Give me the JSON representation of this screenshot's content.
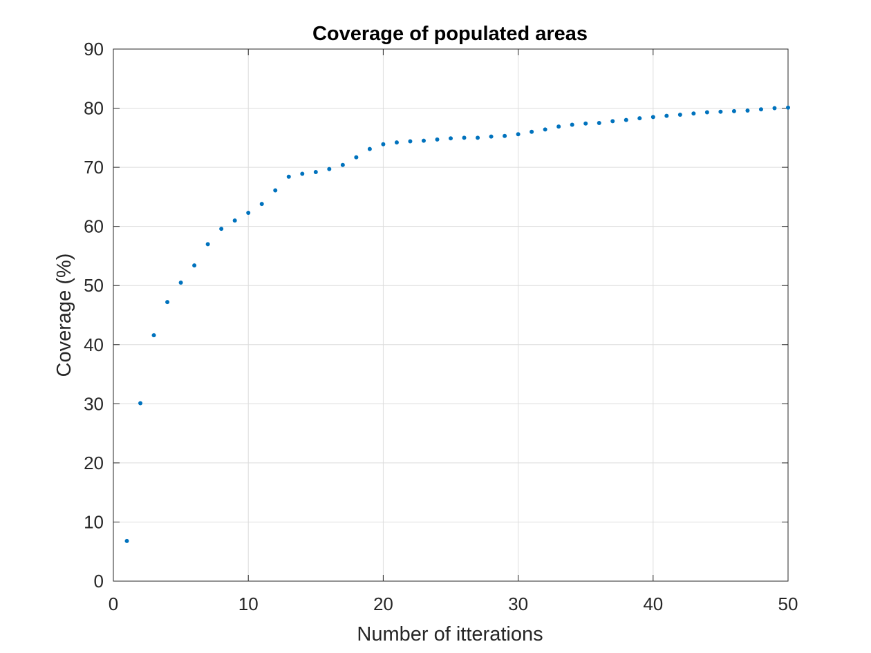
{
  "chart_data": {
    "type": "scatter",
    "title": "Coverage of populated areas",
    "xlabel": "Number of itterations",
    "ylabel": "Coverage (%)",
    "xlim": [
      0,
      50
    ],
    "ylim": [
      0,
      90
    ],
    "xticks": [
      0,
      10,
      20,
      30,
      40,
      50
    ],
    "yticks": [
      0,
      10,
      20,
      30,
      40,
      50,
      60,
      70,
      80,
      90
    ],
    "grid": true,
    "marker_color": "#0072BD",
    "x": [
      1,
      2,
      3,
      4,
      5,
      6,
      7,
      8,
      9,
      10,
      11,
      12,
      13,
      14,
      15,
      16,
      17,
      18,
      19,
      20,
      21,
      22,
      23,
      24,
      25,
      26,
      27,
      28,
      29,
      30,
      31,
      32,
      33,
      34,
      35,
      36,
      37,
      38,
      39,
      40,
      41,
      42,
      43,
      44,
      45,
      46,
      47,
      48,
      49,
      50
    ],
    "y": [
      6.8,
      30.1,
      41.6,
      47.2,
      50.5,
      53.4,
      57.0,
      59.6,
      61.0,
      62.3,
      63.8,
      66.1,
      68.4,
      68.9,
      69.2,
      69.7,
      70.4,
      71.7,
      73.1,
      73.9,
      74.2,
      74.4,
      74.5,
      74.7,
      74.9,
      75.0,
      75.0,
      75.2,
      75.3,
      75.6,
      76.0,
      76.4,
      76.9,
      77.2,
      77.4,
      77.5,
      77.8,
      78.0,
      78.3,
      78.5,
      78.7,
      78.9,
      79.1,
      79.3,
      79.4,
      79.5,
      79.6,
      79.8,
      80.0,
      80.1
    ]
  }
}
